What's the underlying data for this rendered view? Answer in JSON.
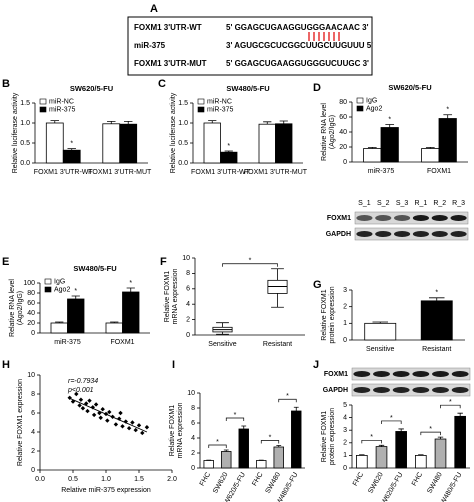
{
  "sequence_panel": {
    "panel": "A",
    "rows": [
      {
        "label": "FOXM1 3'UTR-WT",
        "sequence": "5' GGAGCUGAAGGUGGGAACAAC 3'"
      },
      {
        "label": "miR-375",
        "sequence": "3' AGUGCGCUCGGCUUGCUUGUUU 5'"
      },
      {
        "label": "FOXM1 3'UTR-MUT",
        "sequence": "5' GGAGCUGAAGGUGGGUCUUGC 3'"
      }
    ]
  },
  "blots": [
    {
      "rows": [
        "FOXM1",
        "GAPDH"
      ],
      "lanes": [
        "S_1",
        "S_2",
        "S_3",
        "R_1",
        "R_2",
        "R_3"
      ]
    },
    {
      "rows": [
        "FOXM1",
        "GAPDH"
      ]
    }
  ],
  "chart_data": [
    {
      "type": "bar",
      "panel": "B",
      "title": "SW620/5-FU",
      "y_label": [
        "Relative luciferase activity"
      ],
      "categories": [
        "FOXM1 3'UTR-WT",
        "FOXM1 3'UTR-MUT"
      ],
      "series": [
        {
          "name": "miR-NC",
          "color": "#ffffff",
          "values": [
            1.0,
            0.98
          ],
          "errors": [
            0.06,
            0.06
          ]
        },
        {
          "name": "miR-375",
          "color": "#000000",
          "values": [
            0.32,
            0.97
          ],
          "errors": [
            0.04,
            0.07
          ]
        }
      ],
      "ylim": [
        0,
        1.5
      ],
      "yticks": [
        {
          "value": 0,
          "label": "0.0"
        },
        0.5,
        {
          "value": 1,
          "label": "1.0"
        },
        1.5
      ],
      "significance": "*"
    },
    {
      "type": "bar",
      "panel": "C",
      "title": "SW480/5-FU",
      "y_label": [
        "Relative luciferase activity"
      ],
      "categories": [
        "FOXM1 3'UTR-WT",
        "FOXM1 3'UTR-MUT"
      ],
      "series": [
        {
          "name": "miR-NC",
          "color": "#ffffff",
          "values": [
            1.0,
            0.97
          ],
          "errors": [
            0.06,
            0.06
          ]
        },
        {
          "name": "miR-375",
          "color": "#000000",
          "values": [
            0.27,
            0.98
          ],
          "errors": [
            0.03,
            0.07
          ]
        }
      ],
      "ylim": [
        0,
        1.5
      ],
      "yticks": [
        {
          "value": 0,
          "label": "0.0"
        },
        0.5,
        {
          "value": 1,
          "label": "1.0"
        },
        1.5
      ],
      "significance": "*"
    },
    {
      "type": "bar",
      "panel": "D",
      "title": "SW620/5-FU",
      "y_label": [
        "Relative RNA level",
        "(Ago2/IgG)"
      ],
      "categories": [
        "miR-375",
        "FOXM1"
      ],
      "series": [
        {
          "name": "IgG",
          "color": "#ffffff",
          "values": [
            18,
            18
          ],
          "errors": [
            1.5,
            1.5
          ]
        },
        {
          "name": "Ago2",
          "color": "#000000",
          "values": [
            46,
            58
          ],
          "errors": [
            4,
            5
          ]
        }
      ],
      "ylim": [
        0,
        80
      ],
      "yticks": [
        0,
        20,
        40,
        60,
        80
      ],
      "significance": "*"
    },
    {
      "type": "bar",
      "panel": "E",
      "title": "SW480/5-FU",
      "y_label": [
        "Relative RNA level",
        "(Ago2/IgG)"
      ],
      "categories": [
        "miR-375",
        "FOXM1"
      ],
      "series": [
        {
          "name": "IgG",
          "color": "#ffffff",
          "values": [
            20,
            20
          ],
          "errors": [
            2,
            2
          ]
        },
        {
          "name": "Ago2",
          "color": "#000000",
          "values": [
            68,
            82
          ],
          "errors": [
            6,
            8
          ]
        }
      ],
      "ylim": [
        0,
        100
      ],
      "yticks": [
        0,
        20,
        40,
        60,
        80,
        100
      ],
      "significance": "*"
    },
    {
      "type": "box",
      "panel": "F",
      "y_label": [
        "Relative FOXM1",
        "mRNA expression"
      ],
      "categories": [
        "Sensitive",
        "Resistant"
      ],
      "boxes": [
        {
          "min": 0.1,
          "q1": 0.4,
          "median": 0.7,
          "q3": 1.0,
          "max": 1.6
        },
        {
          "min": 3.6,
          "q1": 5.4,
          "median": 6.3,
          "q3": 7.1,
          "max": 8.6
        }
      ],
      "ylim": [
        0,
        10
      ],
      "yticks": [
        0,
        2,
        4,
        6,
        8,
        10
      ],
      "significance": "*"
    },
    {
      "type": "bar",
      "panel": "G",
      "y_label": [
        "Relative FOXM1",
        "protein expression"
      ],
      "categories": [
        "Sensitive",
        "Resistant"
      ],
      "values": [
        1.0,
        2.35
      ],
      "errors": [
        0.08,
        0.18
      ],
      "colors": [
        "#ffffff",
        "#000000"
      ],
      "ylim": [
        0,
        3
      ],
      "yticks": [
        0,
        1,
        2,
        3
      ],
      "significance": "*"
    },
    {
      "type": "scatter",
      "panel": "H",
      "y_label": [
        "Relative FOXM1 expression"
      ],
      "x_label": "Relative miR-375 expression",
      "annotations": [
        "r=-0.7934",
        "p<0.001"
      ],
      "x": [
        0.45,
        0.5,
        0.55,
        0.6,
        0.62,
        0.65,
        0.7,
        0.72,
        0.75,
        0.8,
        0.82,
        0.85,
        0.9,
        0.92,
        0.95,
        1.0,
        1.02,
        1.05,
        1.1,
        1.15,
        1.2,
        1.22,
        1.25,
        1.3,
        1.35,
        1.4,
        1.45,
        1.5,
        1.55,
        1.62
      ],
      "y": [
        7.6,
        7.2,
        8.0,
        6.8,
        7.4,
        6.5,
        7.0,
        6.2,
        7.3,
        6.6,
        5.8,
        6.9,
        6.0,
        5.5,
        6.4,
        5.9,
        5.2,
        6.1,
        5.6,
        4.8,
        5.4,
        6.0,
        4.6,
        5.1,
        4.4,
        5.0,
        4.2,
        4.7,
        3.9,
        4.5
      ],
      "color": "#000000",
      "xlim": [
        0,
        2
      ],
      "xticks": [
        {
          "value": 0,
          "label": "0.0"
        },
        0.5,
        {
          "value": 1,
          "label": "1.0"
        },
        1.5,
        {
          "value": 2,
          "label": "2.0"
        }
      ],
      "ylim": [
        0,
        10
      ],
      "yticks": [
        0,
        2,
        4,
        6,
        8,
        10
      ]
    },
    {
      "type": "bar",
      "panel": "I",
      "y_label": [
        "Relative FOXM1",
        "mRNA expression"
      ],
      "categories": [
        "FHC",
        "SW620",
        "SW620/5-FU",
        "FHC",
        "SW480",
        "SW480/5-FU"
      ],
      "values": [
        1.0,
        2.2,
        5.2,
        1.0,
        2.8,
        7.6
      ],
      "errors": [
        0.05,
        0.2,
        0.4,
        0.05,
        0.2,
        0.5
      ],
      "colors": [
        "#ffffff",
        "#b0b0b0",
        "#000000",
        "#ffffff",
        "#b0b0b0",
        "#000000"
      ],
      "ylim": [
        0,
        10
      ],
      "yticks": [
        0,
        2,
        4,
        6,
        8,
        10
      ],
      "significance": "*"
    },
    {
      "type": "bar",
      "panel": "J",
      "y_label": [
        "Relative FOXM1",
        "protein expression"
      ],
      "categories": [
        "FHC",
        "SW620",
        "SW620/5-FU",
        "FHC",
        "SW480",
        "SW480/5-FU"
      ],
      "values": [
        1.0,
        1.7,
        2.9,
        1.0,
        2.3,
        4.1
      ],
      "errors": [
        0.05,
        0.1,
        0.2,
        0.05,
        0.15,
        0.25
      ],
      "colors": [
        "#ffffff",
        "#b0b0b0",
        "#000000",
        "#ffffff",
        "#b0b0b0",
        "#000000"
      ],
      "ylim": [
        0,
        5
      ],
      "yticks": [
        0,
        1,
        2,
        3,
        4,
        5
      ],
      "significance": "*"
    }
  ]
}
